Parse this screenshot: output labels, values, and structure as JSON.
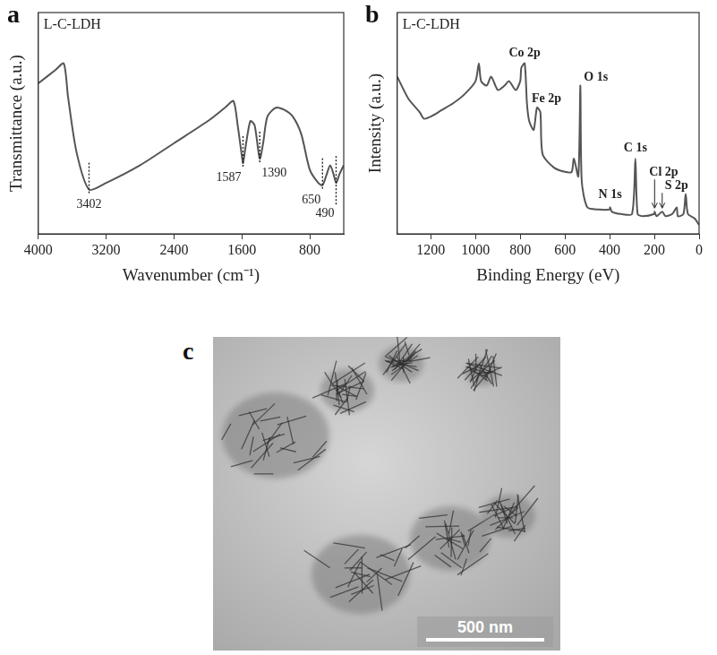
{
  "chart_data": [
    {
      "panel": "a",
      "type": "line",
      "label": "L-C-LDH",
      "x_label": "Wavenumber (cm⁻¹)",
      "y_label": "Transmittance (a.u.)",
      "color": "#555555",
      "tick_labels": "x",
      "xlim": [
        4000,
        400
      ],
      "xticks": [
        4000,
        3200,
        2400,
        1600,
        800
      ],
      "ylim": [
        0,
        100
      ],
      "x": [
        4000,
        3800,
        3700,
        3650,
        3550,
        3402,
        3200,
        2800,
        2400,
        2000,
        1800,
        1700,
        1650,
        1600,
        1587,
        1550,
        1500,
        1450,
        1390,
        1350,
        1300,
        1200,
        1100,
        1000,
        900,
        800,
        700,
        650,
        600,
        560,
        520,
        490,
        450,
        400
      ],
      "values": [
        68,
        74,
        77,
        62,
        37,
        20,
        23,
        31,
        41,
        51,
        57,
        60,
        49,
        35,
        32,
        41,
        51,
        49,
        34,
        41,
        53,
        57,
        56,
        53,
        45,
        29,
        23,
        22,
        27,
        31,
        27,
        23,
        27,
        31
      ],
      "peaks": [
        3402,
        1587,
        1390,
        650,
        490
      ]
    },
    {
      "panel": "b",
      "type": "line",
      "label": "L-C-LDH",
      "x_label": "Binding Energy (eV)",
      "y_label": "Intensity (a.u.)",
      "color": "#555555",
      "tick_labels": "x",
      "xlim": [
        1350,
        0
      ],
      "xticks": [
        1200,
        1000,
        800,
        600,
        400,
        200,
        0
      ],
      "ylim": [
        0,
        100
      ],
      "x": [
        1350,
        1300,
        1250,
        1230,
        1200,
        1150,
        1100,
        1050,
        1000,
        985,
        975,
        950,
        930,
        900,
        870,
        850,
        820,
        800,
        795,
        780,
        770,
        760,
        740,
        725,
        710,
        700,
        650,
        600,
        570,
        560,
        540,
        531,
        525,
        500,
        450,
        400,
        398,
        390,
        350,
        300,
        285,
        275,
        250,
        200,
        199,
        190,
        165,
        150,
        120,
        100,
        95,
        70,
        60,
        50,
        20,
        0
      ],
      "values": [
        71,
        61,
        55,
        52,
        53,
        56,
        59,
        63,
        69,
        77,
        69,
        67,
        71,
        65,
        67,
        69,
        65,
        69,
        75,
        77,
        59,
        51,
        47,
        57,
        55,
        36,
        30,
        28,
        28,
        34,
        26,
        67,
        24,
        12,
        11,
        11,
        12,
        10,
        9,
        9,
        34,
        9,
        8,
        9,
        10,
        8,
        10,
        8,
        9,
        12,
        8,
        9,
        18,
        9,
        7,
        4
      ],
      "annotations": [
        {
          "x": 780,
          "label": "Co 2p"
        },
        {
          "x": 725,
          "label": "Fe 2p"
        },
        {
          "x": 531,
          "label": "O 1s"
        },
        {
          "x": 398,
          "label": "N 1s"
        },
        {
          "x": 285,
          "label": "C 1s"
        },
        {
          "x": 199,
          "label": "Cl 2p"
        },
        {
          "x": 165,
          "label": "S 2p"
        }
      ]
    }
  ],
  "image": {
    "panel": "c",
    "scale_bar": "500 nm"
  }
}
